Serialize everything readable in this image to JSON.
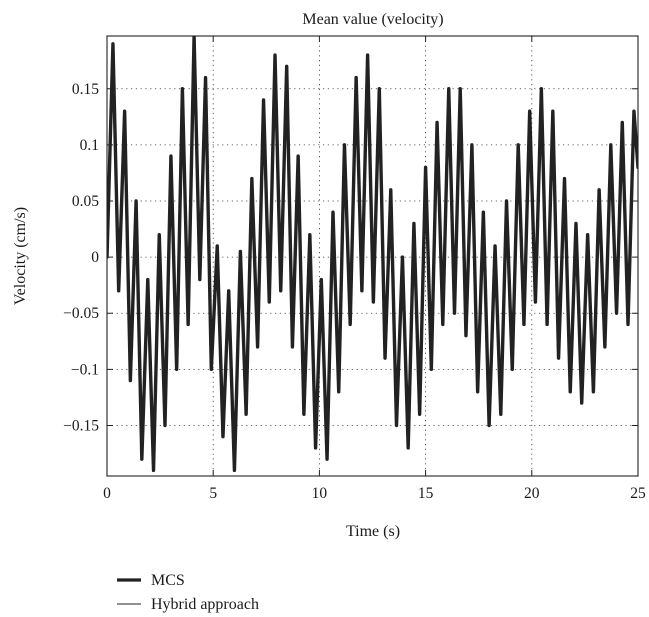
{
  "chart_data": {
    "type": "line",
    "title": "Mean value (velocity)",
    "xlabel": "Time (s)",
    "ylabel": "Velocity (cm/s)",
    "xlim": [
      0,
      25
    ],
    "ylim": [
      -0.195,
      0.197
    ],
    "xticks": [
      0,
      5,
      10,
      15,
      20,
      25
    ],
    "xtick_labels": [
      "0",
      "5",
      "10",
      "15",
      "20",
      "25"
    ],
    "yticks": [
      0.15,
      0.1,
      0.05,
      0,
      -0.05,
      -0.1,
      -0.15
    ],
    "ytick_labels": [
      "0.15",
      "0.1",
      "0.05",
      "0",
      "−0.05",
      "−0.1",
      "−0.15"
    ],
    "grid": "dotted",
    "legend_position": "bottom-left, below axes",
    "series": [
      {
        "name": "MCS",
        "style": "thick",
        "color": "#222222",
        "note_points": "local extrema (time s, velocity cm/s)",
        "x": [
          0.0,
          0.28,
          0.55,
          0.83,
          1.1,
          1.37,
          1.64,
          1.92,
          2.19,
          2.46,
          2.73,
          3.01,
          3.28,
          3.55,
          3.82,
          4.1,
          4.37,
          4.64,
          4.91,
          5.19,
          5.46,
          5.73,
          6.0,
          6.28,
          6.55,
          6.82,
          7.09,
          7.37,
          7.64,
          7.91,
          8.18,
          8.46,
          8.73,
          9.0,
          9.27,
          9.55,
          9.82,
          10.09,
          10.36,
          10.64,
          10.91,
          11.18,
          11.45,
          11.73,
          12.0,
          12.27,
          12.54,
          12.82,
          13.09,
          13.36,
          13.63,
          13.91,
          14.18,
          14.45,
          14.72,
          15.0,
          15.27,
          15.54,
          15.81,
          16.09,
          16.36,
          16.63,
          16.9,
          17.18,
          17.45,
          17.72,
          17.99,
          18.27,
          18.54,
          18.81,
          19.08,
          19.36,
          19.63,
          19.9,
          20.17,
          20.45,
          20.72,
          20.99,
          21.26,
          21.54,
          21.81,
          22.08,
          22.35,
          22.63,
          22.9,
          23.17,
          23.44,
          23.72,
          23.99,
          24.26,
          24.53,
          24.81,
          25.0
        ],
        "y": [
          0.0,
          0.19,
          -0.03,
          0.13,
          -0.11,
          0.05,
          -0.18,
          -0.02,
          -0.19,
          0.02,
          -0.15,
          0.09,
          -0.1,
          0.15,
          -0.06,
          0.197,
          -0.02,
          0.16,
          -0.1,
          0.01,
          -0.16,
          -0.03,
          -0.19,
          0.005,
          -0.14,
          0.07,
          -0.08,
          0.14,
          -0.04,
          0.18,
          -0.03,
          0.17,
          -0.08,
          0.09,
          -0.14,
          0.02,
          -0.17,
          -0.02,
          -0.18,
          0.04,
          -0.12,
          0.1,
          -0.06,
          0.16,
          -0.03,
          0.18,
          -0.04,
          0.15,
          -0.09,
          0.06,
          -0.15,
          0.0,
          -0.17,
          0.03,
          -0.14,
          0.08,
          -0.1,
          0.12,
          -0.06,
          0.15,
          -0.05,
          0.15,
          -0.07,
          0.1,
          -0.12,
          0.04,
          -0.15,
          0.01,
          -0.14,
          0.05,
          -0.1,
          0.1,
          -0.06,
          0.13,
          -0.04,
          0.15,
          -0.06,
          0.13,
          -0.09,
          0.07,
          -0.12,
          0.03,
          -0.13,
          0.02,
          -0.12,
          0.06,
          -0.08,
          0.1,
          -0.05,
          0.12,
          -0.06,
          0.13,
          0.08
        ]
      },
      {
        "name": "Hybrid approach",
        "style": "thin",
        "color": "#222222",
        "note_points": "overlaps MCS curve",
        "x": [
          0.0,
          0.28,
          0.55,
          0.83,
          1.1,
          1.37,
          1.64,
          1.92,
          2.19,
          2.46,
          2.73,
          3.01,
          3.28,
          3.55,
          3.82,
          4.1,
          4.37,
          4.64,
          4.91,
          5.19,
          5.46,
          5.73,
          6.0,
          6.28,
          6.55,
          6.82,
          7.09,
          7.37,
          7.64,
          7.91,
          8.18,
          8.46,
          8.73,
          9.0,
          9.27,
          9.55,
          9.82,
          10.09,
          10.36,
          10.64,
          10.91,
          11.18,
          11.45,
          11.73,
          12.0,
          12.27,
          12.54,
          12.82,
          13.09,
          13.36,
          13.63,
          13.91,
          14.18,
          14.45,
          14.72,
          15.0,
          15.27,
          15.54,
          15.81,
          16.09,
          16.36,
          16.63,
          16.9,
          17.18,
          17.45,
          17.72,
          17.99,
          18.27,
          18.54,
          18.81,
          19.08,
          19.36,
          19.63,
          19.9,
          20.17,
          20.45,
          20.72,
          20.99,
          21.26,
          21.54,
          21.81,
          22.08,
          22.35,
          22.63,
          22.9,
          23.17,
          23.44,
          23.72,
          23.99,
          24.26,
          24.53,
          24.81,
          25.0
        ],
        "y": [
          0.0,
          0.19,
          -0.03,
          0.13,
          -0.11,
          0.05,
          -0.18,
          -0.02,
          -0.19,
          0.02,
          -0.15,
          0.09,
          -0.1,
          0.15,
          -0.06,
          0.197,
          -0.02,
          0.16,
          -0.1,
          0.01,
          -0.16,
          -0.03,
          -0.19,
          0.005,
          -0.14,
          0.07,
          -0.08,
          0.14,
          -0.04,
          0.18,
          -0.03,
          0.17,
          -0.08,
          0.09,
          -0.14,
          0.02,
          -0.17,
          -0.02,
          -0.18,
          0.04,
          -0.12,
          0.1,
          -0.06,
          0.16,
          -0.03,
          0.18,
          -0.04,
          0.15,
          -0.09,
          0.06,
          -0.15,
          0.0,
          -0.17,
          0.03,
          -0.14,
          0.08,
          -0.1,
          0.12,
          -0.06,
          0.15,
          -0.05,
          0.15,
          -0.07,
          0.1,
          -0.12,
          0.04,
          -0.15,
          0.01,
          -0.14,
          0.05,
          -0.1,
          0.1,
          -0.06,
          0.13,
          -0.04,
          0.15,
          -0.06,
          0.13,
          -0.09,
          0.07,
          -0.12,
          0.03,
          -0.13,
          0.02,
          -0.12,
          0.06,
          -0.08,
          0.1,
          -0.05,
          0.12,
          -0.06,
          0.13,
          0.08
        ]
      }
    ]
  }
}
